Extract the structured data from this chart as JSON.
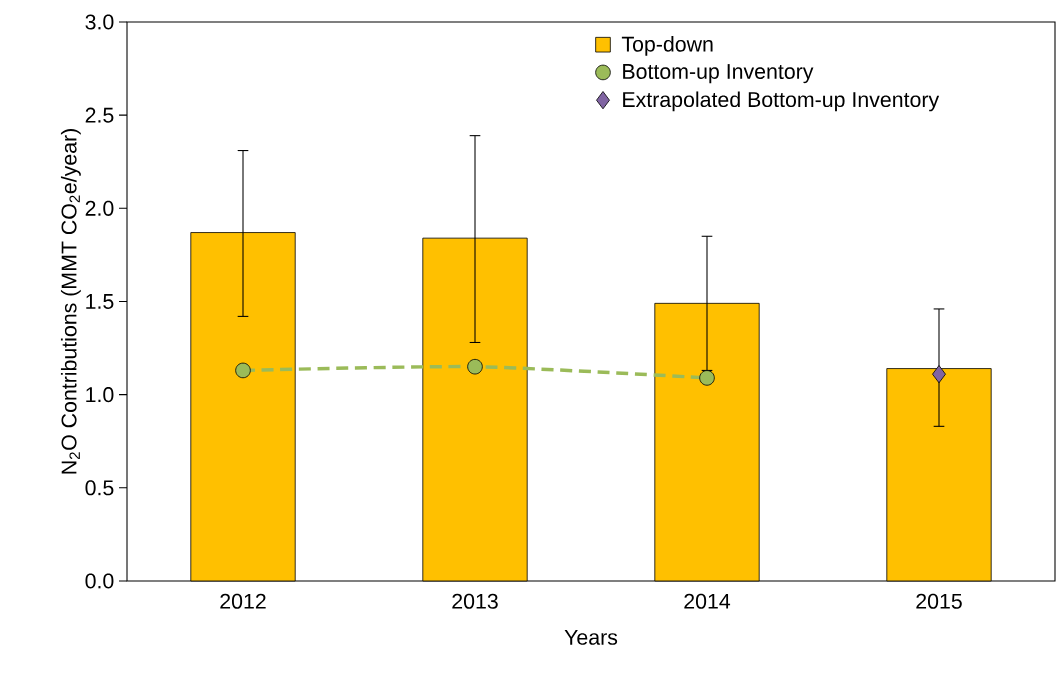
{
  "chart_data": {
    "type": "bar",
    "xlabel": "Years",
    "ylabel": "N$_{2}$O Contributions (MMT CO$_{2}$e/year)",
    "categories": [
      "2012",
      "2013",
      "2014",
      "2015"
    ],
    "series": [
      {
        "name": "Top-down",
        "color": "#ffc000",
        "values": [
          1.87,
          1.84,
          1.49,
          1.14
        ],
        "errors": [
          [
            1.42,
            2.31
          ],
          [
            1.28,
            2.39
          ],
          0.36,
          [
            0.83,
            1.46
          ]
        ]
      },
      {
        "type": "line",
        "name": "Bottom-up Inventory",
        "color": "#9bbb59",
        "values": [
          1.13,
          1.15,
          1.09,
          null
        ],
        "marker": "circle",
        "line_style": "dashed"
      },
      {
        "type": "scatter",
        "name": "Extrapolated Bottom-up Inventory",
        "color": "#8064a2",
        "values": [
          null,
          null,
          null,
          1.11
        ],
        "marker": "diamond"
      }
    ],
    "ylim": [
      0,
      3
    ],
    "yticks": [
      {
        "value": 0,
        "label": "0.0"
      },
      {
        "value": 0.5,
        "label": "0.5"
      },
      {
        "value": 1,
        "label": "1.0"
      },
      {
        "value": 1.5,
        "label": "1.5"
      },
      {
        "value": 2,
        "label": "2.0"
      },
      {
        "value": 2.5,
        "label": "2.5"
      },
      {
        "value": 3,
        "label": "3.0"
      }
    ],
    "grid": false,
    "legend": "top"
  }
}
